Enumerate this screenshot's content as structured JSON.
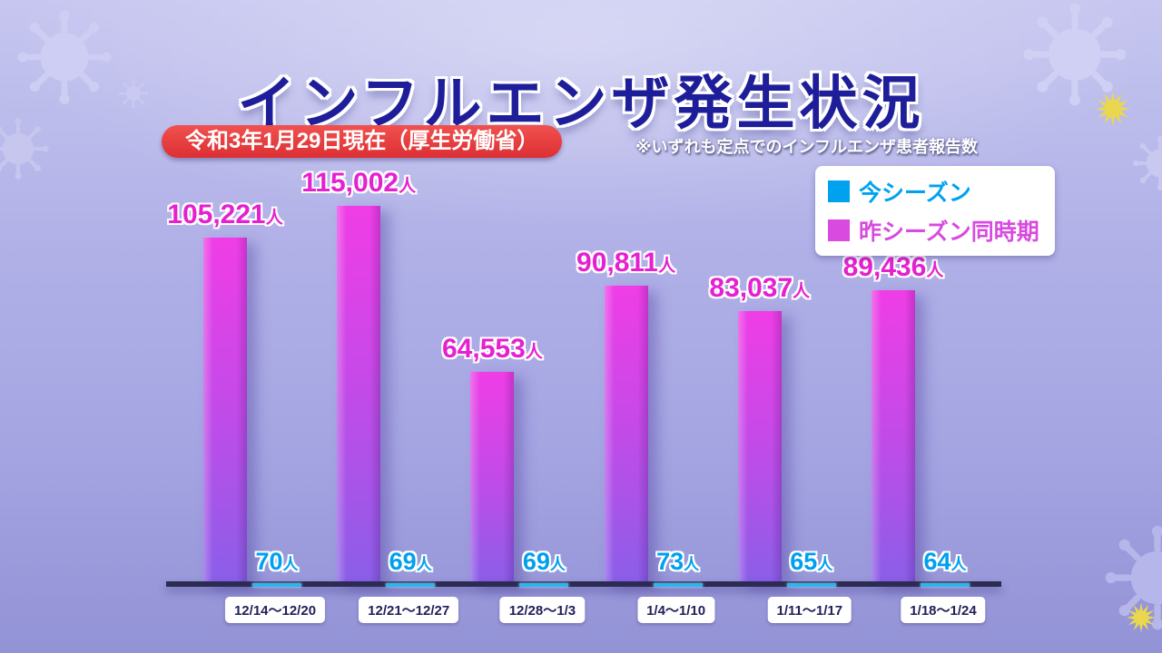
{
  "page": {
    "title": "インフルエンザ発生状況",
    "date_badge": "令和3年1月29日現在（厚生労働省）",
    "note": "※いずれも定点でのインフルエンザ患者報告数"
  },
  "legend": {
    "items": [
      {
        "label": "今シーズン",
        "color": "#00a2f0"
      },
      {
        "label": "昨シーズン同時期",
        "color": "#d84ae0"
      }
    ]
  },
  "chart_data": {
    "type": "bar",
    "title": "インフルエンザ発生状況",
    "categories": [
      "12/14～12/20",
      "12/21～12/27",
      "12/28～1/3",
      "1/4～1/10",
      "1/11～1/17",
      "1/18～1/24"
    ],
    "series": [
      {
        "name": "昨シーズン同時期",
        "values": [
          105221,
          115002,
          64553,
          90811,
          83037,
          89436
        ],
        "labels": [
          "105,221",
          "115,002",
          "64,553",
          "90,811",
          "83,037",
          "89,436"
        ],
        "color_top": "#f03de6",
        "color_mid": "#c24be8",
        "color_bottom": "#8a5fe8"
      },
      {
        "name": "今シーズン",
        "values": [
          70,
          69,
          69,
          73,
          65,
          64
        ],
        "labels": [
          "70",
          "69",
          "69",
          "73",
          "65",
          "64"
        ],
        "color": "#28b6f2"
      }
    ],
    "unit": "人",
    "ylim": [
      0,
      115002
    ],
    "grid": false,
    "legend_position": "top-right"
  }
}
